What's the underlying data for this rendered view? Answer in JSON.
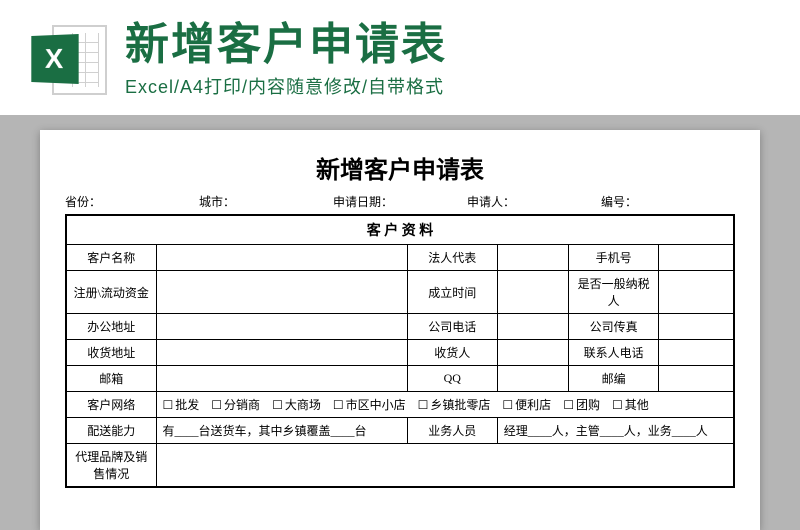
{
  "header": {
    "title": "新增客户申请表",
    "subtitle": "Excel/A4打印/内容随意修改/自带格式"
  },
  "doc": {
    "title": "新增客户申请表",
    "meta": {
      "province": "省份：",
      "city": "城市：",
      "apply_date": "申请日期：",
      "applicant": "申请人：",
      "number": "编号："
    },
    "section": "客 户 资 料",
    "rows": {
      "r1": {
        "c1": "客户名称",
        "c2": "法人代表",
        "c3": "手机号"
      },
      "r2": {
        "c1": "注册\\流动资金",
        "c2": "成立时间",
        "c3": "是否一般纳税人"
      },
      "r3": {
        "c1": "办公地址",
        "c2": "公司电话",
        "c3": "公司传真"
      },
      "r4": {
        "c1": "收货地址",
        "c2": "收货人",
        "c3": "联系人电话"
      },
      "r5": {
        "c1": "邮箱",
        "c2": "QQ",
        "c3": "邮编"
      },
      "network": {
        "label": "客户网络",
        "options": [
          "批发",
          "分销商",
          "大商场",
          "市区中小店",
          "乡镇批零店",
          "便利店",
          "团购",
          "其他"
        ]
      },
      "delivery": {
        "label": "配送能力",
        "text_prefix": "有____台送货车，其中乡镇覆盖____台",
        "c2": "业务人员",
        "c3": "经理____人，主管____人，业务____人"
      },
      "brand": {
        "label": "代理品牌及销售情况"
      }
    }
  },
  "colors": {
    "brand_green": "#1a6e43",
    "bg_grey": "#b5b5b5",
    "border": "#000000"
  }
}
